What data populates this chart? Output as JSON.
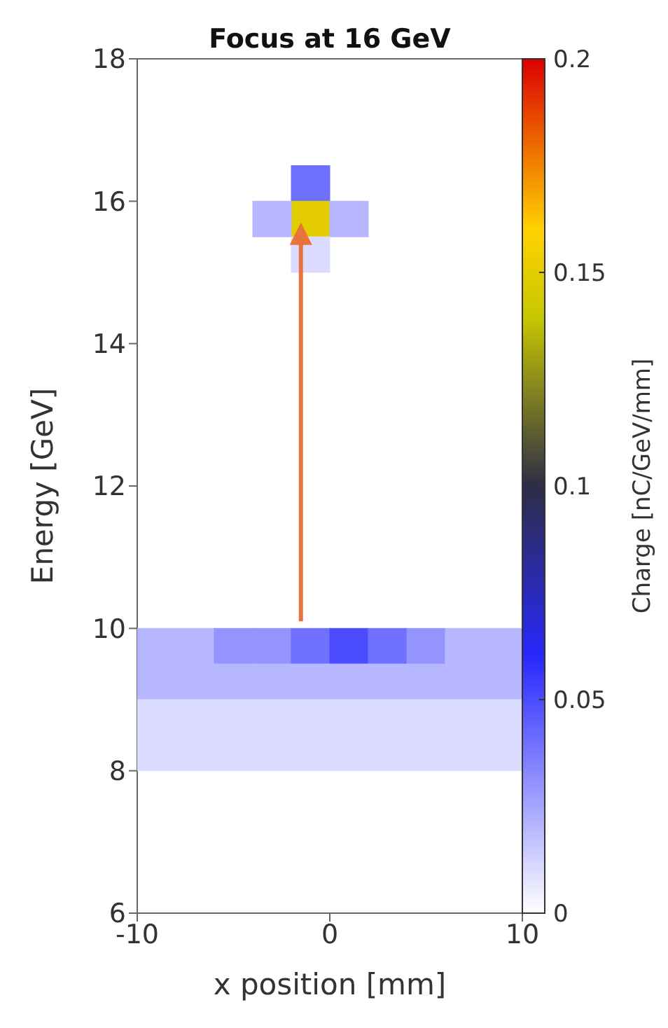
{
  "chart_data": {
    "type": "scatter",
    "title": "Focus at 16 GeV",
    "xlabel": "x position [mm]",
    "ylabel": "Energy [GeV]",
    "clabel": "Charge [nC/GeV/mm]",
    "marker": "square",
    "x": [
      -1,
      -1,
      -3,
      1,
      -1,
      -9,
      -7,
      -5,
      -3,
      -1,
      1,
      3,
      5,
      7,
      9,
      -9,
      -7,
      -5,
      -3,
      -1,
      1,
      3,
      5,
      7,
      9,
      -9,
      -7,
      -5,
      -3,
      -1,
      1,
      3,
      5,
      7,
      9,
      -9,
      -7,
      -5,
      -3,
      -1,
      1,
      3,
      5,
      7,
      9
    ],
    "values": [
      16.25,
      15.75,
      15.75,
      15.75,
      15.25,
      9.75,
      9.75,
      9.75,
      9.75,
      9.75,
      9.75,
      9.75,
      9.75,
      9.75,
      9.75,
      9.25,
      9.25,
      9.25,
      9.25,
      9.25,
      9.25,
      9.25,
      9.25,
      9.25,
      9.25,
      8.75,
      8.75,
      8.75,
      8.75,
      8.75,
      8.75,
      8.75,
      8.75,
      8.75,
      8.75,
      8.25,
      8.25,
      8.25,
      8.25,
      8.25,
      8.25,
      8.25,
      8.25,
      8.25,
      8.25
    ],
    "cvalues": [
      0.04,
      0.15,
      0.02,
      0.02,
      0.01,
      0.02,
      0.02,
      0.03,
      0.03,
      0.04,
      0.05,
      0.04,
      0.03,
      0.02,
      0.02,
      0.02,
      0.02,
      0.02,
      0.02,
      0.02,
      0.02,
      0.02,
      0.02,
      0.02,
      0.02,
      0.01,
      0.01,
      0.01,
      0.01,
      0.01,
      0.01,
      0.01,
      0.01,
      0.01,
      0.01,
      0.01,
      0.01,
      0.01,
      0.01,
      0.01,
      0.01,
      0.01,
      0.01,
      0.01,
      0.01
    ],
    "xlim": [
      -10,
      10
    ],
    "xticks": [
      -10,
      0,
      10
    ],
    "ylim": [
      6,
      18
    ],
    "yticks": [
      6,
      8,
      10,
      12,
      14,
      16,
      18
    ],
    "clim": [
      0,
      0.2
    ],
    "cticks": [
      0,
      0.05,
      0.1,
      0.15,
      0.2
    ]
  }
}
